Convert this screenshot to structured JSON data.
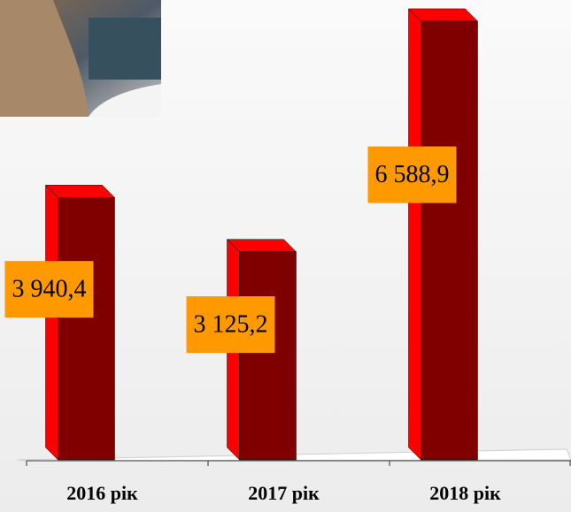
{
  "chart_data": {
    "type": "bar3d",
    "categories": [
      "2016 рік",
      "2017 рік",
      "2018 рік"
    ],
    "values": [
      3940.4,
      3125.2,
      6588.9
    ],
    "value_labels": [
      "3 940,4",
      "3 125,2",
      "6 588,9"
    ],
    "color": "#800000",
    "side_color": "#ff0000",
    "label_box_color": "#ff9900",
    "ylim": [
      0,
      7000
    ]
  }
}
